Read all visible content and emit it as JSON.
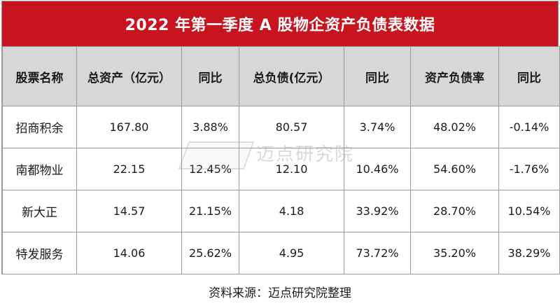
{
  "table": {
    "title": "2022 年第一季度 A 股物企资产负债表数据",
    "headers": [
      "股票名称",
      "总资产（亿元）",
      "同比",
      "总负债(亿元）",
      "同比",
      "资产负债率",
      "同比"
    ],
    "rows": [
      [
        "招商积余",
        "167.80",
        "3.88%",
        "80.57",
        "3.74%",
        "48.02%",
        "-0.14%"
      ],
      [
        "南都物业",
        "22.15",
        "12.45%",
        "12.10",
        "10.46%",
        "54.60%",
        "-1.76%"
      ],
      [
        "新大正",
        "14.57",
        "21.15%",
        "4.18",
        "33.92%",
        "28.70%",
        "10.54%"
      ],
      [
        "特发服务",
        "14.06",
        "25.62%",
        "4.95",
        "73.72%",
        "35.20%",
        "38.29%"
      ]
    ]
  },
  "watermark": {
    "text": "迈点研究院"
  },
  "footer": {
    "source": "资料来源：迈点研究院整理"
  },
  "colors": {
    "title_bg": "#c8141e",
    "header_bg": "#d7d7d7",
    "border": "#9a9a9a"
  }
}
